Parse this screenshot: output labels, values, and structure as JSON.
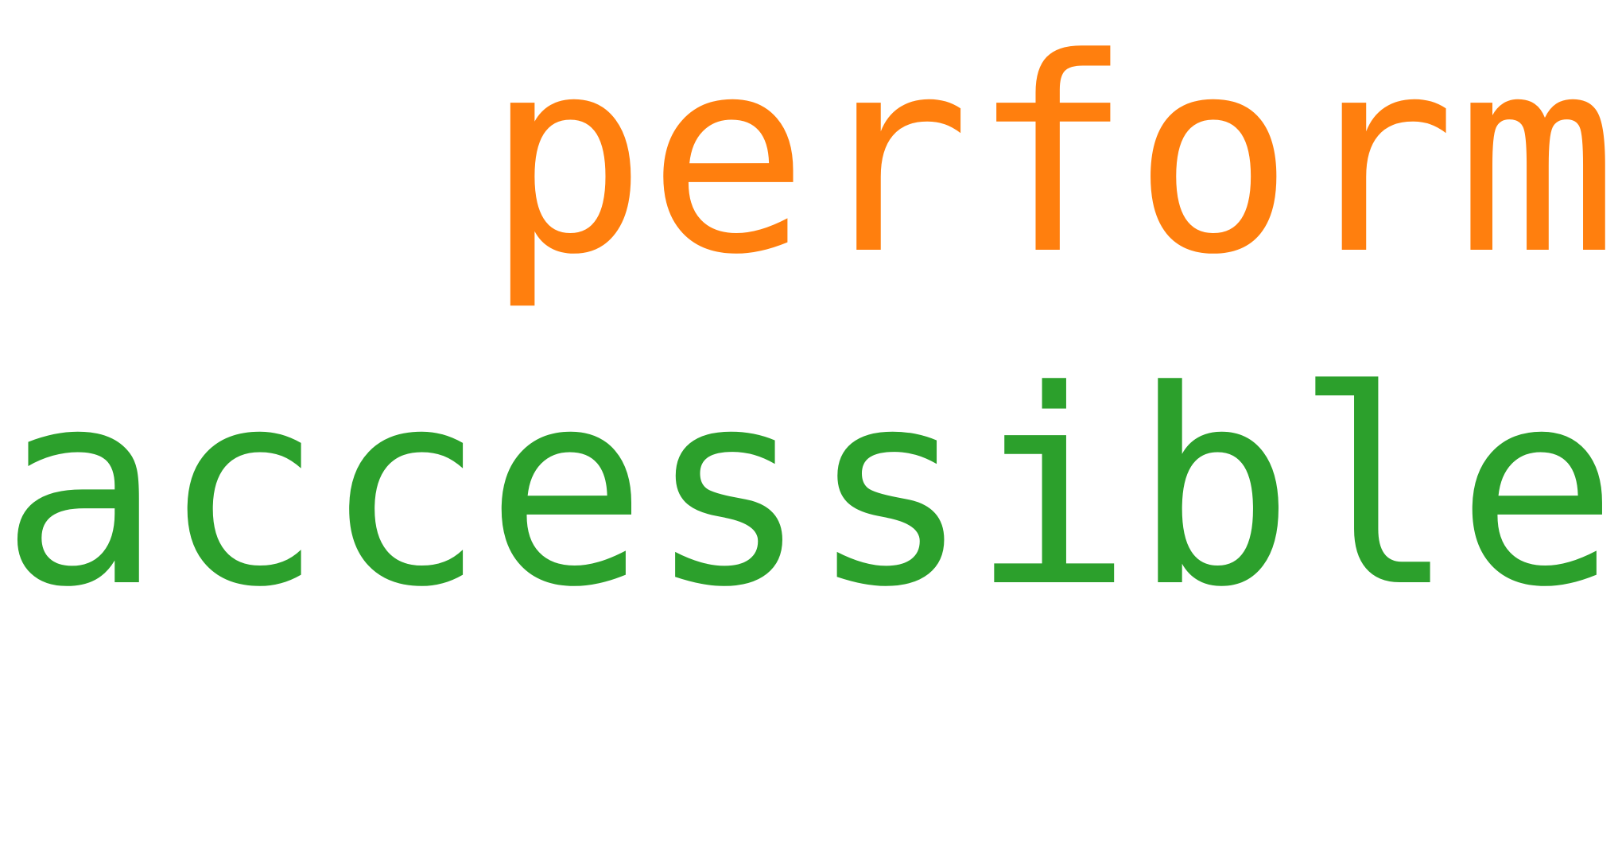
{
  "words": [
    {
      "text": "   perform",
      "color": "#ff7f0e"
    },
    {
      "text": "accessible",
      "color": "#2ca02c"
    }
  ]
}
